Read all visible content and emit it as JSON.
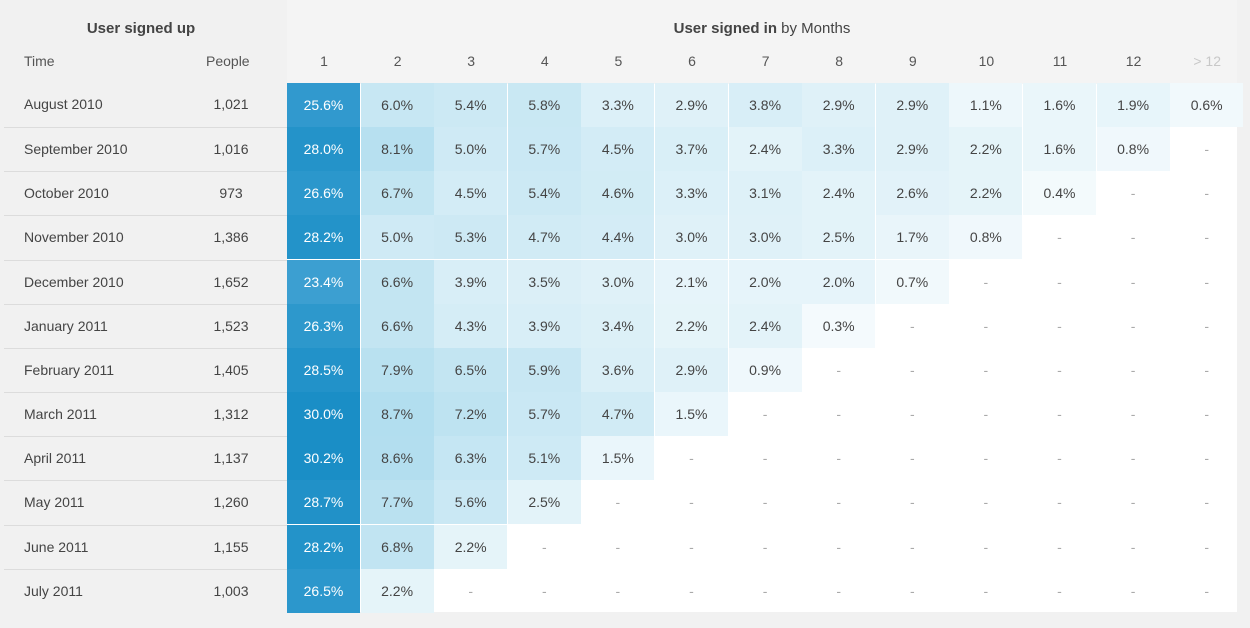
{
  "header": {
    "left_title": "User signed up",
    "right_title_bold": "User signed in",
    "right_title_rest": " by Months",
    "time_label": "Time",
    "people_label": "People",
    "columns": [
      "1",
      "2",
      "3",
      "4",
      "5",
      "6",
      "7",
      "8",
      "9",
      "10",
      "11",
      "12",
      "> 12"
    ]
  },
  "rows": [
    {
      "label": "August 2010",
      "people": "1,021",
      "values": [
        "25.6%",
        "6.0%",
        "5.4%",
        "5.8%",
        "3.3%",
        "2.9%",
        "3.8%",
        "2.9%",
        "2.9%",
        "1.1%",
        "1.6%",
        "1.9%",
        "0.6%"
      ]
    },
    {
      "label": "September 2010",
      "people": "1,016",
      "values": [
        "28.0%",
        "8.1%",
        "5.0%",
        "5.7%",
        "4.5%",
        "3.7%",
        "2.4%",
        "3.3%",
        "2.9%",
        "2.2%",
        "1.6%",
        "0.8%",
        "-"
      ]
    },
    {
      "label": "October 2010",
      "people": "973",
      "values": [
        "26.6%",
        "6.7%",
        "4.5%",
        "5.4%",
        "4.6%",
        "3.3%",
        "3.1%",
        "2.4%",
        "2.6%",
        "2.2%",
        "0.4%",
        "-",
        "-"
      ]
    },
    {
      "label": "November 2010",
      "people": "1,386",
      "values": [
        "28.2%",
        "5.0%",
        "5.3%",
        "4.7%",
        "4.4%",
        "3.0%",
        "3.0%",
        "2.5%",
        "1.7%",
        "0.8%",
        "-",
        "-",
        "-"
      ]
    },
    {
      "label": "December 2010",
      "people": "1,652",
      "values": [
        "23.4%",
        "6.6%",
        "3.9%",
        "3.5%",
        "3.0%",
        "2.1%",
        "2.0%",
        "2.0%",
        "0.7%",
        "-",
        "-",
        "-",
        "-"
      ]
    },
    {
      "label": "January 2011",
      "people": "1,523",
      "values": [
        "26.3%",
        "6.6%",
        "4.3%",
        "3.9%",
        "3.4%",
        "2.2%",
        "2.4%",
        "0.3%",
        "-",
        "-",
        "-",
        "-",
        "-"
      ]
    },
    {
      "label": "February 2011",
      "people": "1,405",
      "values": [
        "28.5%",
        "7.9%",
        "6.5%",
        "5.9%",
        "3.6%",
        "2.9%",
        "0.9%",
        "-",
        "-",
        "-",
        "-",
        "-",
        "-"
      ]
    },
    {
      "label": "March 2011",
      "people": "1,312",
      "values": [
        "30.0%",
        "8.7%",
        "7.2%",
        "5.7%",
        "4.7%",
        "1.5%",
        "-",
        "-",
        "-",
        "-",
        "-",
        "-",
        "-"
      ]
    },
    {
      "label": "April 2011",
      "people": "1,137",
      "values": [
        "30.2%",
        "8.6%",
        "6.3%",
        "5.1%",
        "1.5%",
        "-",
        "-",
        "-",
        "-",
        "-",
        "-",
        "-",
        "-"
      ]
    },
    {
      "label": "May 2011",
      "people": "1,260",
      "values": [
        "28.7%",
        "7.7%",
        "5.6%",
        "2.5%",
        "-",
        "-",
        "-",
        "-",
        "-",
        "-",
        "-",
        "-",
        "-"
      ]
    },
    {
      "label": "June 2011",
      "people": "1,155",
      "values": [
        "28.2%",
        "6.8%",
        "2.2%",
        "-",
        "-",
        "-",
        "-",
        "-",
        "-",
        "-",
        "-",
        "-",
        "-"
      ]
    },
    {
      "label": "July 2011",
      "people": "1,003",
      "values": [
        "26.5%",
        "2.2%",
        "-",
        "-",
        "-",
        "-",
        "-",
        "-",
        "-",
        "-",
        "-",
        "-",
        "-"
      ]
    }
  ],
  "colors": {
    "accent_dark": "#1f8fc6",
    "accent_light": "#dff1f9",
    "header_bg": "#f4f4f4",
    "left_bg": "#f1f1f1"
  }
}
